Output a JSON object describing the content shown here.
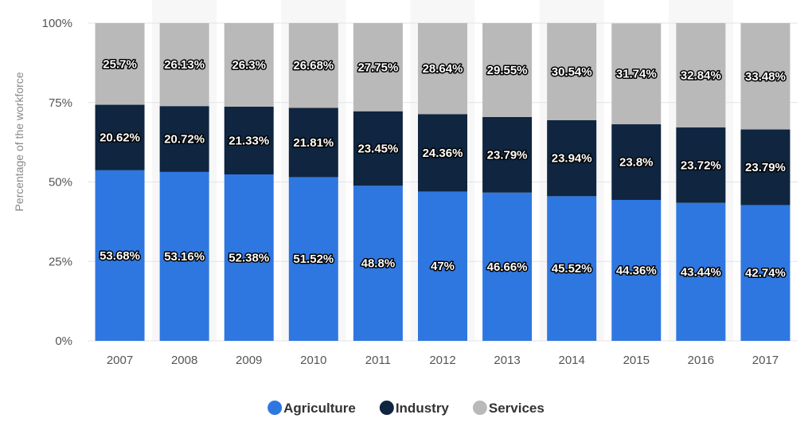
{
  "chart_data": {
    "type": "bar",
    "stacked": true,
    "categories": [
      "2007",
      "2008",
      "2009",
      "2010",
      "2011",
      "2012",
      "2013",
      "2014",
      "2015",
      "2016",
      "2017"
    ],
    "series": [
      {
        "name": "Agriculture",
        "color": "#2f77e0",
        "values": [
          53.68,
          53.16,
          52.38,
          51.52,
          48.8,
          47,
          46.66,
          45.52,
          44.36,
          43.44,
          42.74
        ]
      },
      {
        "name": "Industry",
        "color": "#0f2540",
        "values": [
          20.62,
          20.72,
          21.33,
          21.81,
          23.45,
          24.36,
          23.79,
          23.94,
          23.8,
          23.72,
          23.79
        ]
      },
      {
        "name": "Services",
        "color": "#b9b9b9",
        "values": [
          25.7,
          26.13,
          26.3,
          26.68,
          27.75,
          28.64,
          29.55,
          30.54,
          31.74,
          32.84,
          33.48
        ]
      }
    ],
    "ylabel": "Percentage of the workforce",
    "ylim": [
      0,
      100
    ],
    "yticks": [
      "0%",
      "25%",
      "50%",
      "75%",
      "100%"
    ],
    "value_suffix": "%",
    "grid": true,
    "legend_position": "bottom-center"
  }
}
